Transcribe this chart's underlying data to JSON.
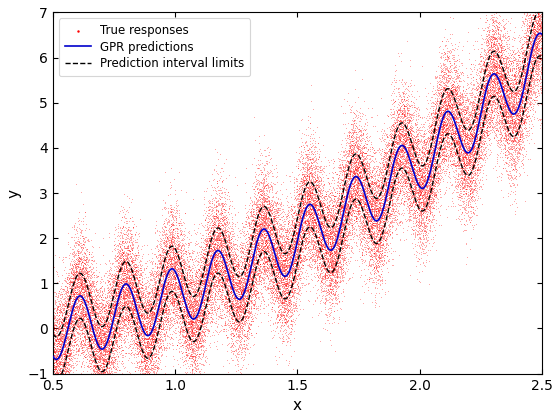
{
  "x_min": 0.5,
  "x_max": 2.5,
  "y_min": -1,
  "y_max": 7,
  "xlabel": "x",
  "ylabel": "y",
  "n_scatter": 50000,
  "noise_std": 0.35,
  "gpr_color": "#0000cc",
  "scatter_color": "#ff0000",
  "interval_color": "#000000",
  "legend_labels": [
    "True responses",
    "GPR predictions",
    "Prediction interval limits"
  ],
  "scatter_marker": "s",
  "scatter_size": 0.5,
  "gpr_linewidth": 1.2,
  "interval_linewidth": 1.0,
  "title": ""
}
